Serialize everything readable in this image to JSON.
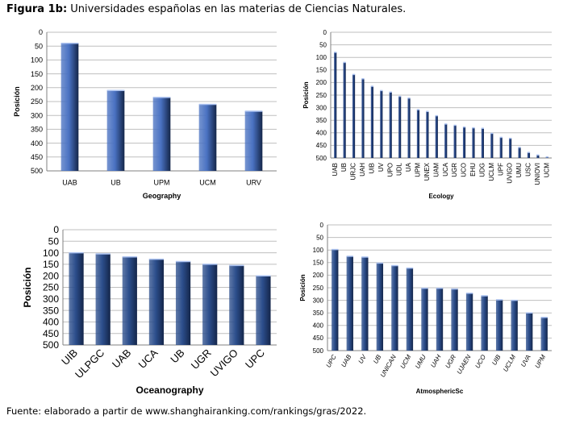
{
  "figure": {
    "label": "Figura 1b:",
    "caption": " Universidades españolas en las materias de Ciencias Naturales.",
    "source": "Fuente: elaborado a partir de www.shanghairanking.com/rankings/gras/2022."
  },
  "chart_data": [
    {
      "type": "bar",
      "xlabel": "Geography",
      "ylabel": "Posición",
      "ylim": [
        0,
        500
      ],
      "yinverted": true,
      "yticks": [
        "0",
        "50",
        "100",
        "150",
        "200",
        "250",
        "300",
        "350",
        "400",
        "450",
        "500"
      ],
      "categories": [
        "UAB",
        "UB",
        "UPM",
        "UCM",
        "URV"
      ],
      "values": [
        40,
        210,
        235,
        260,
        285
      ],
      "grid": true,
      "bar_color": "#4a72c2"
    },
    {
      "type": "bar",
      "xlabel": "Ecology",
      "ylabel": "Posición",
      "ylim": [
        0,
        500
      ],
      "yinverted": true,
      "yticks": [
        "0",
        "50",
        "100",
        "150",
        "200",
        "250",
        "300",
        "350",
        "400",
        "450",
        "500"
      ],
      "categories": [
        "UAB",
        "UB",
        "URJC",
        "UAH",
        "UIB",
        "UV",
        "UPO",
        "UDL",
        "UA",
        "UPM",
        "UNEX",
        "UAM",
        "UCA",
        "UGR",
        "UCO",
        "EHU",
        "UDG",
        "UCLM",
        "UPF",
        "UVIGO",
        "UMU",
        "USC",
        "UNIOVI",
        "UCM"
      ],
      "values": [
        80,
        120,
        168,
        185,
        215,
        232,
        238,
        255,
        262,
        308,
        315,
        332,
        365,
        370,
        377,
        380,
        382,
        402,
        418,
        422,
        458,
        478,
        488,
        496
      ],
      "grid": true,
      "bar_color": "#1f3f80"
    },
    {
      "type": "bar",
      "xlabel": "Oceanography",
      "ylabel": "Posición",
      "ylim": [
        0,
        500
      ],
      "yinverted": true,
      "yticks": [
        "0",
        "50",
        "100",
        "150",
        "200",
        "250",
        "300",
        "350",
        "400",
        "450",
        "500"
      ],
      "categories": [
        "UIB",
        "ULPGC",
        "UAB",
        "UCA",
        "UB",
        "UGR",
        "UVIGO",
        "UPC"
      ],
      "values": [
        100,
        105,
        118,
        128,
        138,
        150,
        155,
        200
      ],
      "grid": true,
      "bar_color": "#2c4e8c"
    },
    {
      "type": "bar",
      "xlabel": "AtmosphericSc",
      "ylabel": "Posición",
      "ylim": [
        0,
        500
      ],
      "yinverted": true,
      "yticks": [
        "0",
        "50",
        "100",
        "150",
        "200",
        "250",
        "300",
        "350",
        "400",
        "450",
        "500"
      ],
      "categories": [
        "UPC",
        "UAB",
        "UV",
        "UB",
        "UNICAN",
        "UCM",
        "UMU",
        "UAH",
        "UGR",
        "UJAEN",
        "UCO",
        "UIB",
        "UCLM",
        "UVA",
        "UPM"
      ],
      "values": [
        98,
        125,
        128,
        152,
        162,
        172,
        252,
        252,
        255,
        272,
        282,
        298,
        300,
        350,
        368
      ],
      "grid": true,
      "bar_color": "#2c4e8c"
    }
  ]
}
